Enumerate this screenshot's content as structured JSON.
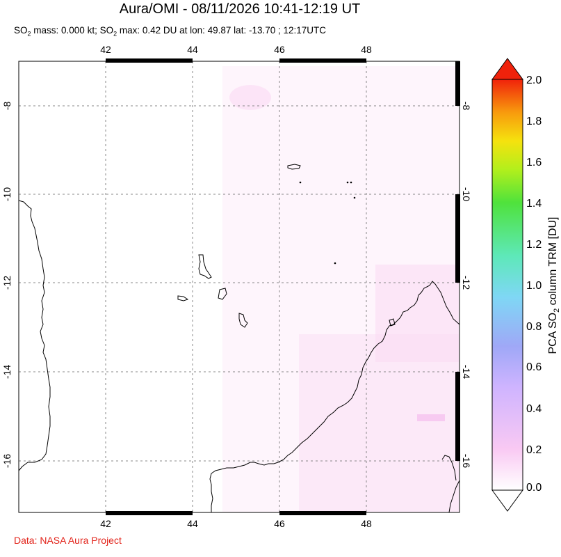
{
  "title": "Aura/OMI - 08/11/2026 10:41-12:19 UT",
  "subtitle": {
    "prefix": "SO",
    "sub": "2",
    "mass_text": " mass: 0.000 kt; SO",
    "sub2": "2",
    "max_text": " max: 0.42 DU at lon: 49.87 lat: -13.70 ; 12:17UTC"
  },
  "credit": "Data: NASA Aura Project",
  "map": {
    "lon_ticks": [
      "42",
      "44",
      "46",
      "48"
    ],
    "lat_ticks": [
      "-8",
      "-10",
      "-12",
      "-14",
      "-16"
    ],
    "lon_range": [
      40,
      50
    ],
    "lat_range": [
      -17.2,
      -7
    ]
  },
  "colorbar": {
    "label_prefix": "PCA SO",
    "label_sub": "2",
    "label_suffix": " column TRM [DU]",
    "ticks": [
      "0.0",
      "0.2",
      "0.4",
      "0.6",
      "0.8",
      "1.0",
      "1.2",
      "1.4",
      "1.6",
      "1.8",
      "2.0"
    ],
    "range": [
      0.0,
      2.0
    ],
    "colors": [
      "#ffffff",
      "#f9c9f3",
      "#cfb4ff",
      "#9fa8f7",
      "#7fd7f5",
      "#5ee8b9",
      "#4fe23c",
      "#b2ef1c",
      "#f5e20e",
      "#f89a0d",
      "#f0220b"
    ]
  }
}
